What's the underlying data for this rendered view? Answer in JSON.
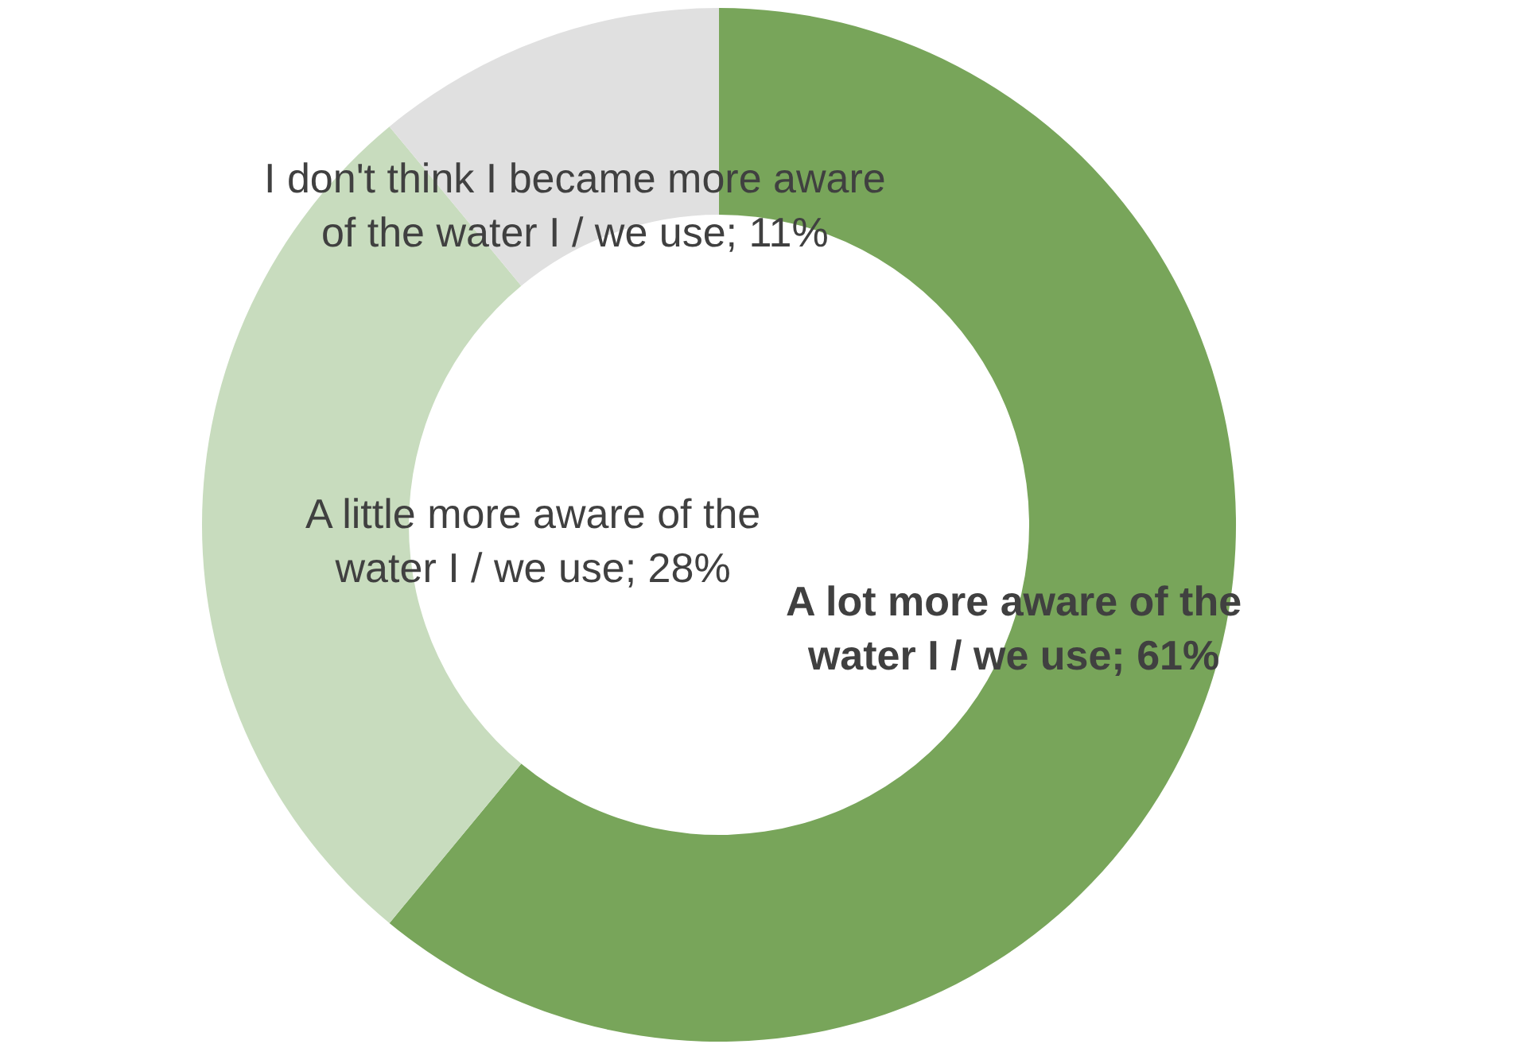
{
  "chart_data": {
    "type": "donut",
    "categories": [
      "A lot more aware of the water I / we use",
      "A little more aware of the water I / we use",
      "I don't think I became more aware of the water I / we use"
    ],
    "values": [
      61,
      28,
      11
    ],
    "colors": [
      "#78a55a",
      "#c8dcbe",
      "#e0e0e0"
    ],
    "value_labels": [
      "61%",
      "28%",
      "11%"
    ],
    "legend": false
  }
}
